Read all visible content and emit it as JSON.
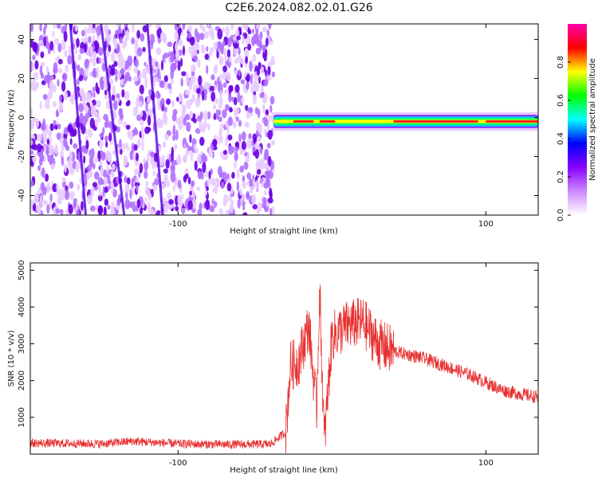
{
  "title": "C2E6.2024.082.02.01.G26",
  "chart_data": [
    {
      "type": "heatmap",
      "title": "",
      "xlabel": "Height of straight line (km)",
      "ylabel": "Frequency (Hz)",
      "xlim": [
        -196,
        134
      ],
      "ylim": [
        -50,
        48
      ],
      "xticks": [
        -100,
        100
      ],
      "yticks": [
        -40,
        -20,
        0,
        20,
        40
      ],
      "noise_region_x": [
        -196,
        -38
      ],
      "signal_band": {
        "x_start": -38,
        "x_end": 134,
        "center_hz": -2,
        "halfwidth_hz": 2,
        "peak_segments_x": [
          [
            -25,
            -12
          ],
          [
            -8,
            2
          ],
          [
            40,
            95
          ],
          [
            100,
            134
          ]
        ]
      },
      "colorbar": {
        "label": "Normalized spectral amplitude",
        "range": [
          0.0,
          1.0
        ],
        "ticks": [
          "0.0",
          "0.2",
          "0.4",
          "0.6",
          "0.8"
        ],
        "stops": [
          "#ffffff",
          "#cc88ff",
          "#8800ff",
          "#0000ff",
          "#00ffff",
          "#00ff00",
          "#ffff00",
          "#ff0000",
          "#ff00aa"
        ]
      },
      "colors": {
        "noise_light": "#e8ccff",
        "noise_dark": "#6a00e0",
        "band_core": "#ff2020"
      }
    },
    {
      "type": "line",
      "title": "",
      "xlabel": "Height of straight line (km)",
      "ylabel": "SNR (10 * v/v)",
      "xlim": [
        -196,
        134
      ],
      "ylim": [
        0,
        5200
      ],
      "xticks": [
        -100,
        100
      ],
      "yticks": [
        1000,
        2000,
        3000,
        4000,
        5000
      ],
      "color": "#e83030",
      "series_profile": {
        "x": [
          -196,
          -150,
          -130,
          -100,
          -70,
          -40,
          -30,
          -27,
          -22,
          -15,
          -10,
          -8,
          -5,
          0,
          10,
          20,
          30,
          40,
          50,
          60,
          70,
          80,
          90,
          100,
          110,
          120,
          134
        ],
        "y": [
          300,
          280,
          350,
          280,
          260,
          270,
          600,
          2400,
          2500,
          3500,
          1200,
          4500,
          300,
          3200,
          3500,
          3600,
          3000,
          2800,
          2700,
          2600,
          2450,
          2300,
          2150,
          1950,
          1750,
          1650,
          1550
        ]
      }
    }
  ]
}
